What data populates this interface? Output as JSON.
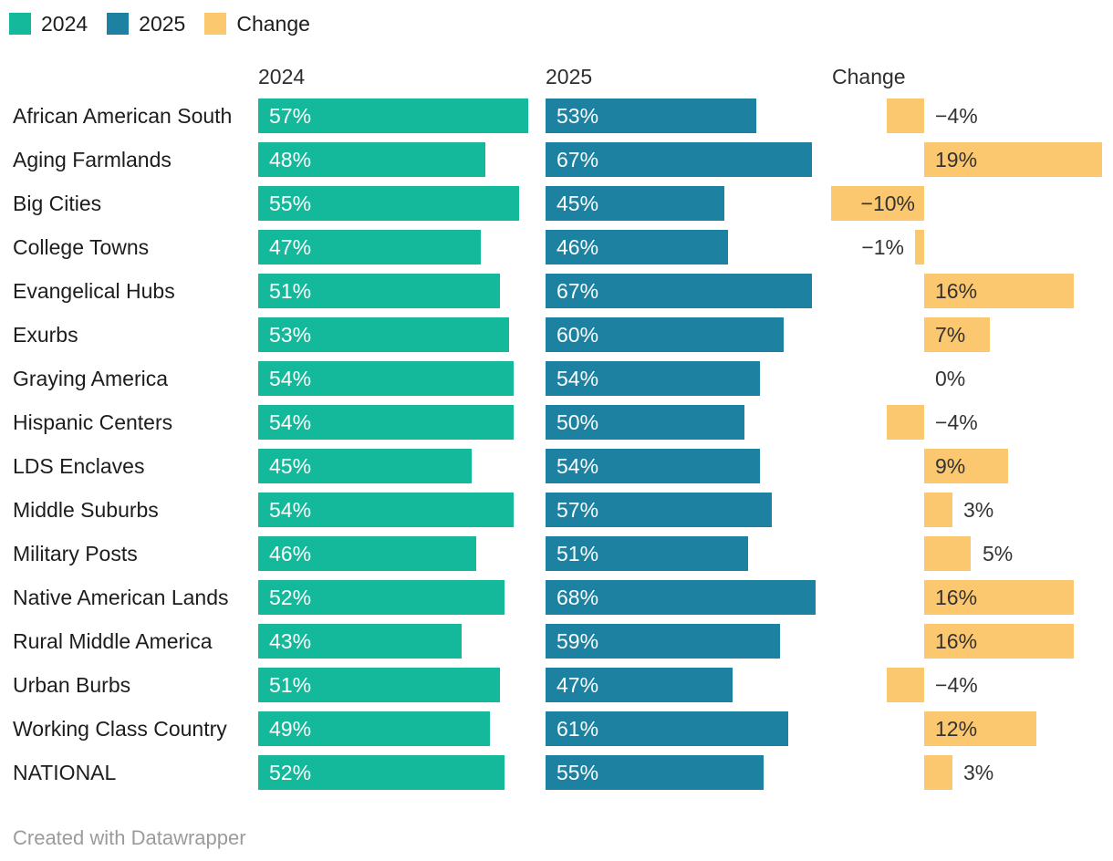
{
  "legend": {
    "items": [
      {
        "label": "2024",
        "color": "#13B99A"
      },
      {
        "label": "2025",
        "color": "#1D81A2"
      },
      {
        "label": "Change",
        "color": "#FBC76F"
      }
    ]
  },
  "column_headers": [
    "2024",
    "2025",
    "Change"
  ],
  "footer": {
    "credit": "Created with Datawrapper"
  },
  "chart_data": {
    "type": "bar",
    "title": "",
    "categories": [
      "African American South",
      "Aging Farmlands",
      "Big Cities",
      "College Towns",
      "Evangelical Hubs",
      "Exurbs",
      "Graying America",
      "Hispanic Centers",
      "LDS Enclaves",
      "Middle Suburbs",
      "Military Posts",
      "Native American Lands",
      "Rural Middle America",
      "Urban Burbs",
      "Working Class Country",
      "NATIONAL"
    ],
    "series": [
      {
        "name": "2024",
        "color": "#13B99A",
        "axis_max": 57,
        "values": [
          57,
          48,
          55,
          47,
          51,
          53,
          54,
          54,
          45,
          54,
          46,
          52,
          43,
          51,
          49,
          52
        ],
        "labels": [
          "57%",
          "48%",
          "55%",
          "47%",
          "51%",
          "53%",
          "54%",
          "54%",
          "45%",
          "54%",
          "46%",
          "52%",
          "43%",
          "51%",
          "49%",
          "52%"
        ]
      },
      {
        "name": "2025",
        "color": "#1D81A2",
        "axis_max": 68,
        "values": [
          53,
          67,
          45,
          46,
          67,
          60,
          54,
          50,
          54,
          57,
          51,
          68,
          59,
          47,
          61,
          55
        ],
        "labels": [
          "53%",
          "67%",
          "45%",
          "46%",
          "67%",
          "60%",
          "54%",
          "50%",
          "54%",
          "57%",
          "51%",
          "68%",
          "59%",
          "47%",
          "61%",
          "55%"
        ]
      },
      {
        "name": "Change",
        "color": "#FBC76F",
        "axis_range": [
          -10,
          19
        ],
        "values": [
          -4,
          19,
          -10,
          -1,
          16,
          7,
          0,
          -4,
          9,
          3,
          5,
          16,
          16,
          -4,
          12,
          3
        ],
        "labels": [
          "−4%",
          "19%",
          "−10%",
          "−1%",
          "16%",
          "7%",
          "0%",
          "−4%",
          "9%",
          "3%",
          "5%",
          "16%",
          "16%",
          "−4%",
          "12%",
          "3%"
        ]
      }
    ],
    "value_suffix": "%",
    "layout_hint": "three-column split bar chart; each column independently scaled to fill ~296px; grid off; legend top-left"
  }
}
